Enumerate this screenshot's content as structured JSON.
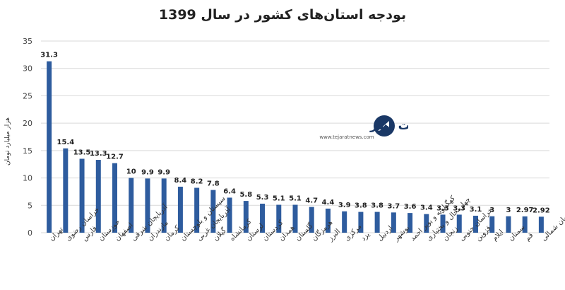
{
  "chart_data": {
    "type": "bar",
    "title": "بودجه استان‌های کشور در سال 1399",
    "ylabel": "هزار میلیارد تومان",
    "ylim": [
      0,
      35
    ],
    "yticks": [
      0,
      5,
      10,
      15,
      20,
      25,
      30,
      35
    ],
    "grid": true,
    "color": "#2e5c9e",
    "categories": [
      "تهران",
      "خراسان رضوی",
      "فارس",
      "خوزستان",
      "اصفهان",
      "آذربایجان شرقی",
      "مازندران",
      "کرمان",
      "سیستان و بلوچستان",
      "آذربایجان غربی",
      "گیلان",
      "کرمانشاه",
      "لرستان",
      "کردستان",
      "همدان",
      "گلستان",
      "هرمزگان",
      "البرز",
      "مرکزی",
      "یزد",
      "اردبیل",
      "بوشهر",
      "کهگیلویه و بویر احمد",
      "چهارمحال و بختیاری",
      "زنجان",
      "خراسان جنوبی",
      "قزوین",
      "ایلام",
      "سمنان",
      "قم",
      "خراسان شمالی"
    ],
    "values": [
      31.3,
      15.4,
      13.5,
      13.3,
      12.7,
      10,
      9.9,
      9.9,
      8.4,
      8.2,
      7.8,
      6.4,
      5.8,
      5.3,
      5.1,
      5.1,
      4.7,
      4.4,
      3.9,
      3.8,
      3.8,
      3.7,
      3.6,
      3.4,
      3.3,
      3.3,
      3.1,
      3,
      3,
      2.97,
      2.92
    ],
    "value_labels": [
      "31.3",
      "15.4",
      "13.5",
      "13.3",
      "12.7",
      "10",
      "9.9",
      "9.9",
      "8.4",
      "8.2",
      "7.8",
      "6.4",
      "5.8",
      "5.3",
      "5.1",
      "5.1",
      "4.7",
      "4.4",
      "3.9",
      "3.8",
      "3.8",
      "3.7",
      "3.6",
      "3.4",
      "3.3",
      "3.3",
      "3.1",
      "3",
      "3",
      "2.97",
      "2.92"
    ]
  },
  "logo": {
    "brand_text": "تجارت نیوز",
    "url_text": "www.tejaratnews.com",
    "accent": "#e8262d",
    "dark": "#1a3866"
  }
}
